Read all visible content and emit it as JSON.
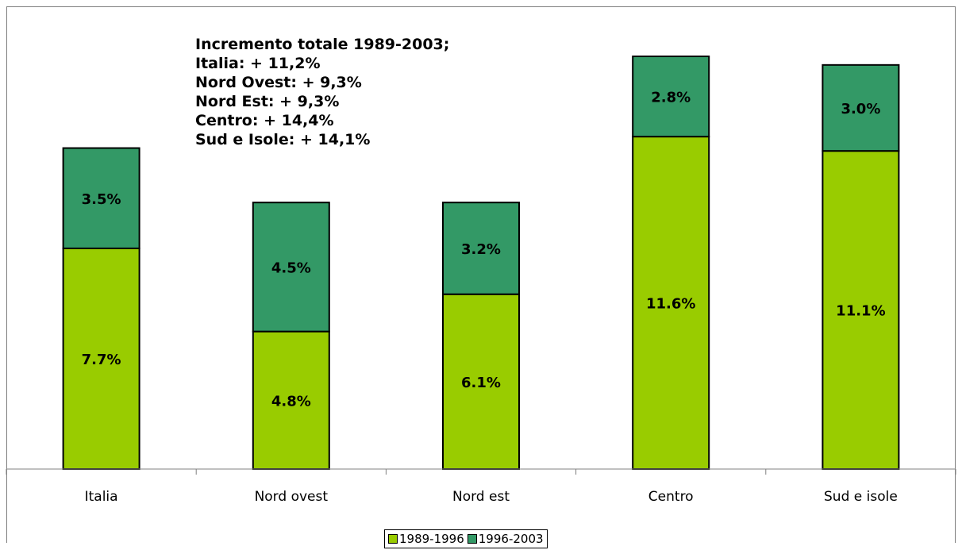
{
  "chart_data": {
    "type": "bar",
    "stacked": true,
    "categories": [
      "Italia",
      "Nord ovest",
      "Nord est",
      "Centro",
      "Sud e isole"
    ],
    "series": [
      {
        "name": "1989-1996",
        "color": "#99cc00",
        "values": [
          7.7,
          4.8,
          6.1,
          11.6,
          11.1
        ],
        "labels": [
          "7.7%",
          "4.8%",
          "6.1%",
          "11.6%",
          "11.1%"
        ]
      },
      {
        "name": "1996-2003",
        "color": "#339966",
        "values": [
          3.5,
          4.5,
          3.2,
          2.8,
          3.0
        ],
        "labels": [
          "3.5%",
          "4.5%",
          "3.2%",
          "2.8%",
          "3.0%"
        ]
      }
    ],
    "ylim": [
      0,
      15
    ],
    "grid": false,
    "legend_position": "bottom",
    "annotation_lines": [
      "Incremento totale 1989-2003;",
      "Italia: + 11,2%",
      "Nord Ovest: + 9,3%",
      "Nord Est: + 9,3%",
      "Centro: + 14,4%",
      "Sud e Isole: + 14,1%"
    ]
  }
}
